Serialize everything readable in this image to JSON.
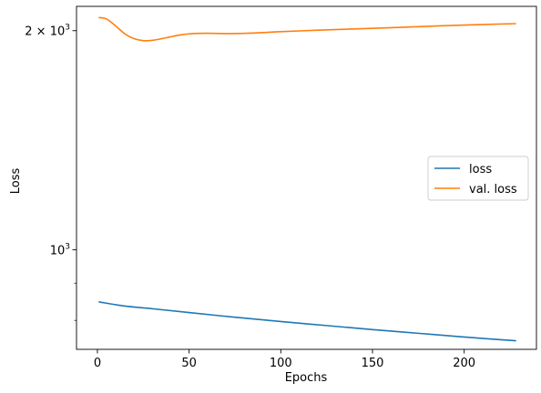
{
  "chart_data": {
    "type": "line",
    "title": "",
    "xlabel": "Epochs",
    "ylabel": "Loss",
    "yscale": "log",
    "xlim": [
      -11.4,
      239.4
    ],
    "ylim": [
      730,
      2160
    ],
    "x_ticks": [
      {
        "value": 0,
        "label": "0"
      },
      {
        "value": 50,
        "label": "50"
      },
      {
        "value": 100,
        "label": "100"
      },
      {
        "value": 150,
        "label": "150"
      },
      {
        "value": 200,
        "label": "200"
      }
    ],
    "y_major_ticks": [
      {
        "value": 1000,
        "label": "10",
        "sup": "3"
      },
      {
        "value": 2000,
        "label": "2 × 10",
        "sup": "3"
      }
    ],
    "y_minor_ticks": [
      800,
      900
    ],
    "grid": false,
    "legend": {
      "position": "center-right",
      "entries": [
        "loss",
        "val. loss"
      ]
    },
    "series": [
      {
        "name": "loss",
        "color": "#1f77b4",
        "x": [
          1,
          15,
          30,
          50,
          75,
          100,
          125,
          150,
          175,
          200,
          228
        ],
        "y": [
          848,
          837,
          830,
          820,
          808,
          797,
          787,
          777,
          768,
          759,
          750
        ]
      },
      {
        "name": "val. loss",
        "color": "#ff7f0e",
        "x": [
          1,
          5,
          10,
          15,
          20,
          25,
          30,
          35,
          40,
          45,
          50,
          55,
          60,
          70,
          80,
          90,
          100,
          120,
          140,
          160,
          180,
          200,
          228
        ],
        "y": [
          2085,
          2075,
          2030,
          1980,
          1950,
          1938,
          1940,
          1950,
          1962,
          1973,
          1980,
          1983,
          1984,
          1982,
          1983,
          1988,
          1994,
          2003,
          2011,
          2019,
          2028,
          2036,
          2045
        ]
      }
    ]
  }
}
